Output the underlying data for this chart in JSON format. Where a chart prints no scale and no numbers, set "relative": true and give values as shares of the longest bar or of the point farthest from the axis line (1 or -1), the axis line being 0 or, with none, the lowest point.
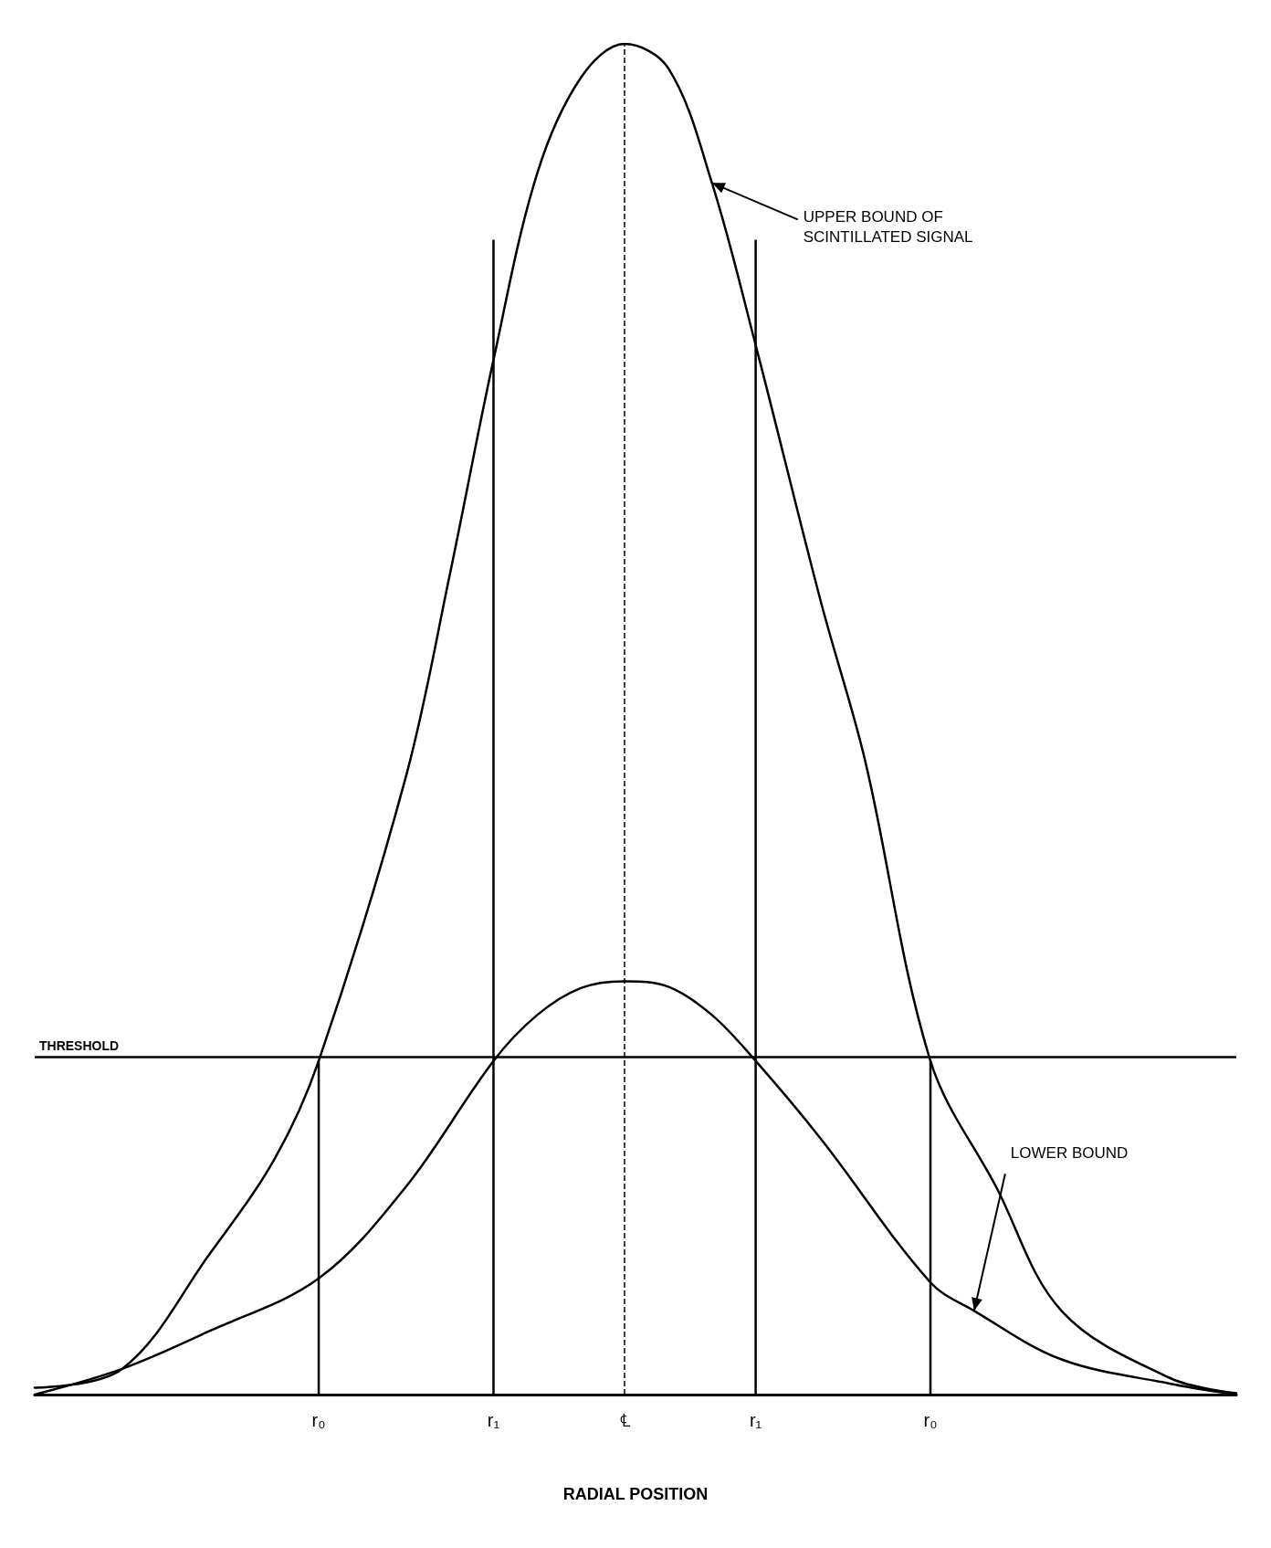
{
  "chart_data": {
    "type": "line",
    "relative": true,
    "xlabel": "RADIAL POSITION",
    "categories": [
      null,
      null,
      null,
      null,
      null,
      null,
      null,
      null,
      null,
      null,
      null,
      null,
      null,
      "r₀",
      null,
      null,
      null,
      null,
      null,
      null,
      null,
      "r₁",
      null,
      null,
      null,
      null,
      null,
      "℄",
      null,
      null,
      null,
      null,
      null,
      "r₁",
      null,
      null,
      null,
      null,
      null,
      null,
      null,
      "r₀",
      null,
      null,
      null,
      null,
      null,
      null,
      null,
      null,
      null,
      null,
      null,
      null,
      null,
      null
    ],
    "series": [
      {
        "color": "#000000",
        "values": [
          0.005,
          null,
          null,
          null,
          0.019,
          null,
          null,
          null,
          0.104,
          null,
          null,
          0.175,
          null,
          0.247,
          null,
          null,
          null,
          0.458,
          null,
          0.607,
          null,
          0.766,
          null,
          0.904,
          null,
          0.975,
          null,
          1,
          null,
          0.982,
          null,
          0.897,
          null,
          0.777,
          null,
          null,
          0.586,
          null,
          0.47,
          null,
          null,
          0.247,
          null,
          null,
          0.154,
          null,
          null,
          0.062,
          null,
          null,
          null,
          null,
          0.012,
          null,
          null,
          0.001
        ]
      },
      {
        "color": "#000000",
        "values": [
          0,
          null,
          null,
          null,
          0.019,
          null,
          null,
          null,
          0.047,
          null,
          null,
          null,
          null,
          0.086,
          null,
          null,
          null,
          0.154,
          null,
          null,
          null,
          0.247,
          null,
          0.281,
          null,
          0.301,
          null,
          0.306,
          null,
          0.302,
          null,
          0.281,
          null,
          0.247,
          null,
          null,
          0.189,
          null,
          null,
          null,
          null,
          0.083,
          null,
          0.062,
          null,
          null,
          null,
          0.026,
          null,
          null,
          null,
          null,
          0.008,
          null,
          null,
          0
        ]
      },
      {
        "type": "bar",
        "color": "#000000",
        "values": [
          null,
          null,
          null,
          null,
          null,
          null,
          null,
          null,
          null,
          null,
          null,
          null,
          null,
          0.247,
          null,
          null,
          null,
          null,
          null,
          null,
          null,
          0.855,
          null,
          null,
          null,
          null,
          null,
          null,
          null,
          null,
          null,
          null,
          null,
          0.855,
          null,
          null,
          null,
          null,
          null,
          null,
          null,
          0.247,
          null,
          null,
          null,
          null,
          null,
          null,
          null,
          null,
          null,
          null,
          null,
          null,
          null,
          null
        ]
      }
    ],
    "ref_lines": [
      {
        "axis": "y",
        "value": 0.247,
        "label": "THRESHOLD",
        "color": "#000000",
        "line_style": "solid"
      },
      {
        "axis": "x",
        "value": "℄",
        "label": null,
        "color": "#000000",
        "line_style": "dashed"
      }
    ],
    "annotations": [
      "UPPER BOUND OF\nSCINTILLATED SIGNAL",
      "LOWER BOUND"
    ],
    "grid": false,
    "marker": "none",
    "line_style": "solid"
  }
}
